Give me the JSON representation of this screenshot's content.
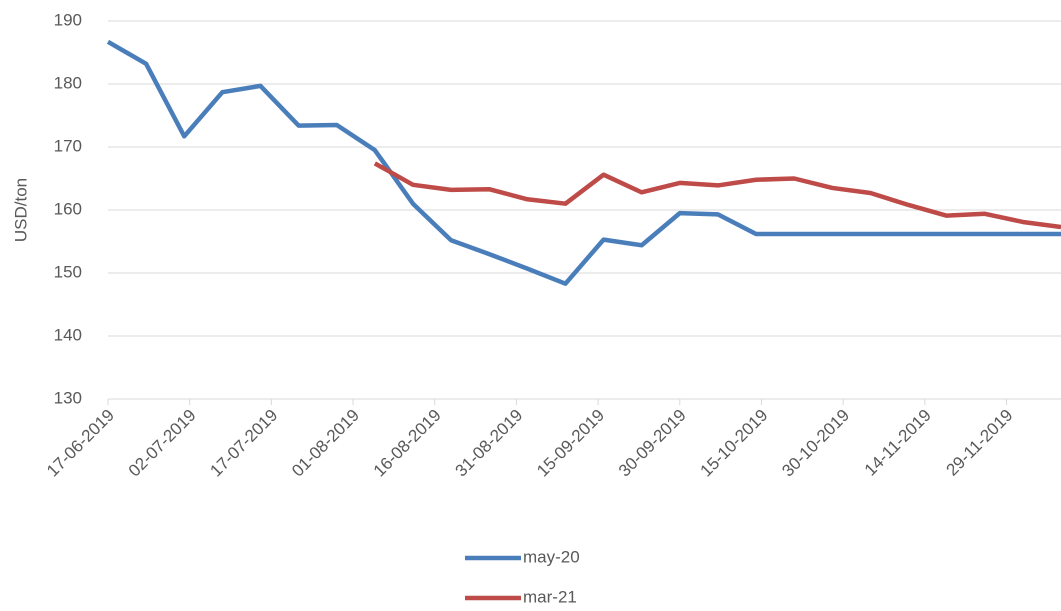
{
  "chart_data": {
    "type": "line",
    "y_label": "USD/ton",
    "x": [
      "2019-06-17",
      "2019-06-24",
      "2019-07-01",
      "2019-07-08",
      "2019-07-15",
      "2019-07-22",
      "2019-07-29",
      "2019-08-05",
      "2019-08-12",
      "2019-08-19",
      "2019-08-26",
      "2019-09-02",
      "2019-09-09",
      "2019-09-16",
      "2019-09-23",
      "2019-09-30",
      "2019-10-07",
      "2019-10-14",
      "2019-10-21",
      "2019-10-28",
      "2019-11-04",
      "2019-11-11",
      "2019-11-18",
      "2019-11-25",
      "2019-12-02",
      "2019-12-09"
    ],
    "series": [
      {
        "name": "may-20",
        "color": "#4a7ebb",
        "values": [
          186.7,
          183.2,
          171.7,
          178.7,
          179.7,
          173.4,
          173.5,
          169.5,
          161,
          155.2,
          153,
          150.7,
          148.3,
          155.3,
          154.4,
          159.5,
          159.3,
          156.2,
          156.2,
          156.2,
          156.2,
          156.2,
          156.2,
          156.2,
          156.2,
          156.2
        ]
      },
      {
        "name": "mar-21",
        "color": "#be4b48",
        "values": [
          null,
          null,
          null,
          null,
          null,
          null,
          null,
          167.4,
          164,
          163.2,
          163.3,
          161.7,
          161,
          165.6,
          162.8,
          164.3,
          163.9,
          164.8,
          165,
          163.5,
          162.7,
          160.8,
          159.1,
          159.4,
          158.1,
          157.3
        ]
      }
    ],
    "xlim": [
      "2019-06-17",
      "2019-12-09"
    ],
    "xticks": [
      {
        "value": "2019-06-17",
        "label": "17-06-2019"
      },
      {
        "value": "2019-07-02",
        "label": "02-07-2019"
      },
      {
        "value": "2019-07-17",
        "label": "17-07-2019"
      },
      {
        "value": "2019-08-01",
        "label": "01-08-2019"
      },
      {
        "value": "2019-08-16",
        "label": "16-08-2019"
      },
      {
        "value": "2019-08-31",
        "label": "31-08-2019"
      },
      {
        "value": "2019-09-15",
        "label": "15-09-2019"
      },
      {
        "value": "2019-09-30",
        "label": "30-09-2019"
      },
      {
        "value": "2019-10-15",
        "label": "15-10-2019"
      },
      {
        "value": "2019-10-30",
        "label": "30-10-2019"
      },
      {
        "value": "2019-11-14",
        "label": "14-11-2019"
      },
      {
        "value": "2019-11-29",
        "label": "29-11-2019"
      }
    ],
    "ylim": [
      130,
      190
    ],
    "yticks": [
      130,
      140,
      150,
      160,
      170,
      180,
      190
    ],
    "grid": true,
    "legend": "bottom"
  }
}
